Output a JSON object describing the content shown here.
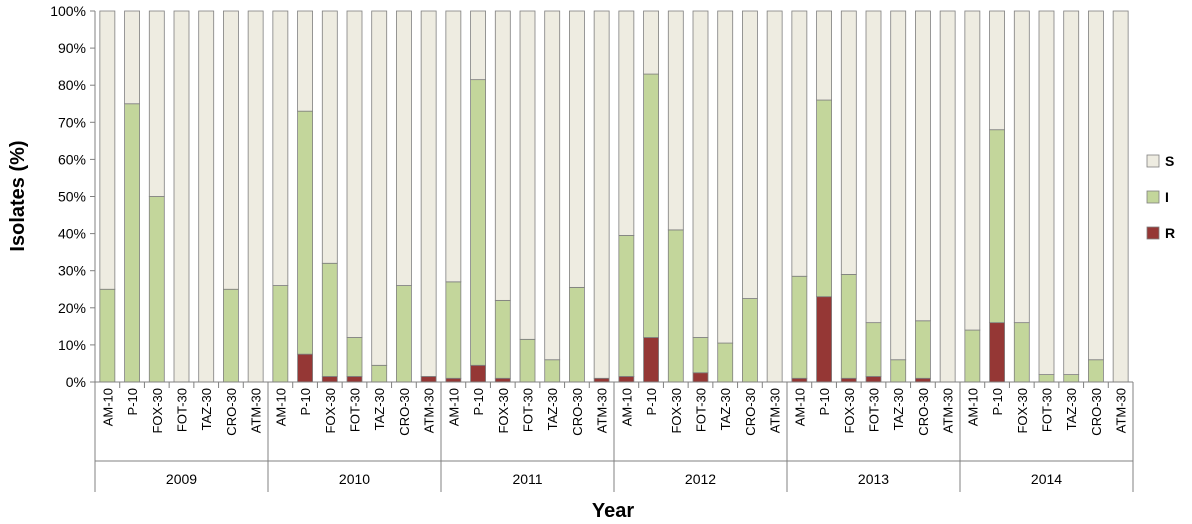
{
  "chart_data": {
    "type": "bar",
    "stacked": true,
    "title": "",
    "xlabel": "Year",
    "ylabel": "Isolates (%)",
    "ylim": [
      0,
      100
    ],
    "yticks": [
      "0%",
      "10%",
      "20%",
      "30%",
      "40%",
      "50%",
      "60%",
      "70%",
      "80%",
      "90%",
      "100%"
    ],
    "grid": false,
    "legend_position": "right",
    "groups": [
      "2009",
      "2010",
      "2011",
      "2012",
      "2013",
      "2014"
    ],
    "categories": [
      "AM-10",
      "P-10",
      "FOX-30",
      "FOT-30",
      "TAZ-30",
      "CRO-30",
      "ATM-30"
    ],
    "series": [
      {
        "name": "R",
        "color": "#953735",
        "values": [
          [
            0,
            0,
            0,
            0,
            0,
            0,
            0
          ],
          [
            0,
            7.5,
            1.5,
            1.5,
            0,
            0,
            1.5
          ],
          [
            1,
            4.5,
            1,
            0,
            0,
            0,
            1
          ],
          [
            1.5,
            12,
            0,
            2.5,
            0,
            0,
            0
          ],
          [
            1,
            23,
            1,
            1.5,
            0,
            1,
            0
          ],
          [
            0,
            16,
            0,
            0,
            0,
            0,
            0
          ]
        ]
      },
      {
        "name": "I",
        "color": "#C3D69B",
        "values": [
          [
            25,
            75,
            50,
            0,
            0,
            25,
            0
          ],
          [
            26,
            65.5,
            30.5,
            10.5,
            4.5,
            26,
            0
          ],
          [
            26,
            77,
            21,
            11.5,
            6,
            25.5,
            0
          ],
          [
            38,
            71,
            41,
            9.5,
            10.5,
            22.5,
            0
          ],
          [
            27.5,
            53,
            28,
            14.5,
            6,
            15.5,
            0
          ],
          [
            14,
            52,
            16,
            2,
            2,
            6,
            0
          ]
        ]
      },
      {
        "name": "S",
        "color": "#EEECE1",
        "values": [
          [
            75,
            25,
            50,
            100,
            100,
            75,
            100
          ],
          [
            74,
            27,
            68,
            88,
            95.5,
            74,
            98.5
          ],
          [
            73,
            18.5,
            78,
            88.5,
            94,
            74.5,
            99
          ],
          [
            60.5,
            17,
            59,
            88,
            89.5,
            77.5,
            100
          ],
          [
            71.5,
            24,
            71,
            84,
            94,
            83.5,
            100
          ],
          [
            86,
            32,
            84,
            98,
            98,
            94,
            100
          ]
        ]
      }
    ]
  }
}
